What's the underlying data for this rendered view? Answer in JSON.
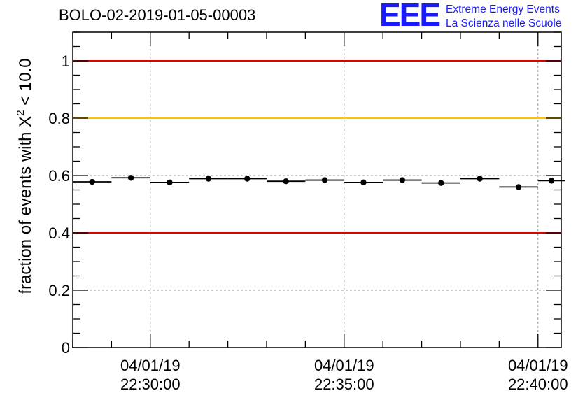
{
  "chart_data": {
    "type": "scatter",
    "title": "BOLO-02-2019-01-05-00003",
    "ylabel": {
      "prefix": "fraction of events with ",
      "symbol": "X",
      "superscript": "2",
      "suffix": " < 10.0"
    },
    "ylim": [
      0,
      1.1
    ],
    "yticks": [
      0,
      0.2,
      0.4,
      0.6,
      0.8,
      1
    ],
    "ytick_labels": [
      "0",
      "0.2",
      "0.4",
      "0.6",
      "0.8",
      "1"
    ],
    "xlim": [
      -2.0,
      10.6
    ],
    "xticks": [
      0,
      5,
      10
    ],
    "xtick_labels": [
      [
        "04/01/19",
        "22:30:00"
      ],
      [
        "04/01/19",
        "22:35:00"
      ],
      [
        "04/01/19",
        "22:40:00"
      ]
    ],
    "grid": true,
    "reference_lines": [
      {
        "y": 1.0,
        "color": "#e00000"
      },
      {
        "y": 0.8,
        "color": "#ffc000"
      },
      {
        "y": 0.4,
        "color": "#e00000"
      }
    ],
    "series": [
      {
        "name": "fraction",
        "x_centers": [
          -1.5,
          -0.5,
          0.5,
          1.5,
          2.5,
          3.5,
          4.5,
          5.5,
          6.5,
          7.5,
          8.5,
          9.5,
          10.35
        ],
        "x_halfwidth": [
          0.5,
          0.5,
          0.5,
          0.5,
          0.5,
          0.5,
          0.5,
          0.5,
          0.5,
          0.5,
          0.5,
          0.5,
          0.35
        ],
        "y": [
          0.578,
          0.592,
          0.576,
          0.589,
          0.589,
          0.58,
          0.584,
          0.576,
          0.584,
          0.574,
          0.589,
          0.56,
          0.582
        ]
      }
    ]
  },
  "logo": {
    "mark": "EEE",
    "line1": "Extreme Energy Events",
    "line2": "La Scienza nelle Scuole",
    "color": "#1a1aff"
  }
}
